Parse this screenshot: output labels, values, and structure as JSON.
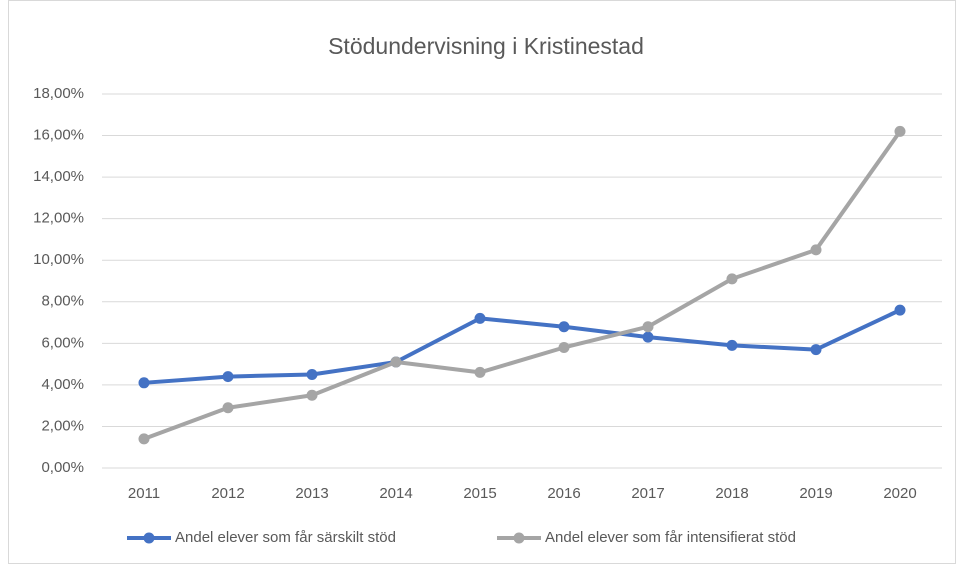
{
  "chart_data": {
    "type": "line",
    "title": "Stödundervisning i Kristinestad",
    "categories": [
      "2011",
      "2012",
      "2013",
      "2014",
      "2015",
      "2016",
      "2017",
      "2018",
      "2019",
      "2020"
    ],
    "series": [
      {
        "name": "Andel elever som får särskilt stöd",
        "color": "#4472c4",
        "values": [
          4.1,
          4.4,
          4.5,
          5.1,
          7.2,
          6.8,
          6.3,
          5.9,
          5.7,
          7.6
        ]
      },
      {
        "name": "Andel elever som får intensifierat stöd",
        "color": "#a5a5a5",
        "values": [
          1.4,
          2.9,
          3.5,
          5.1,
          4.6,
          5.8,
          6.8,
          9.1,
          10.5,
          16.2
        ]
      }
    ],
    "ylim": [
      0,
      18
    ],
    "yticks": [
      {
        "value": 0,
        "label": "0,00%"
      },
      {
        "value": 2,
        "label": "2,00%"
      },
      {
        "value": 4,
        "label": "4,00%"
      },
      {
        "value": 6,
        "label": "6,00%"
      },
      {
        "value": 8,
        "label": "8,00%"
      },
      {
        "value": 10,
        "label": "10,00%"
      },
      {
        "value": 12,
        "label": "12,00%"
      },
      {
        "value": 14,
        "label": "14,00%"
      },
      {
        "value": 16,
        "label": "16,00%"
      },
      {
        "value": 18,
        "label": "18,00%"
      }
    ],
    "grid": true,
    "legend": "bottom"
  }
}
